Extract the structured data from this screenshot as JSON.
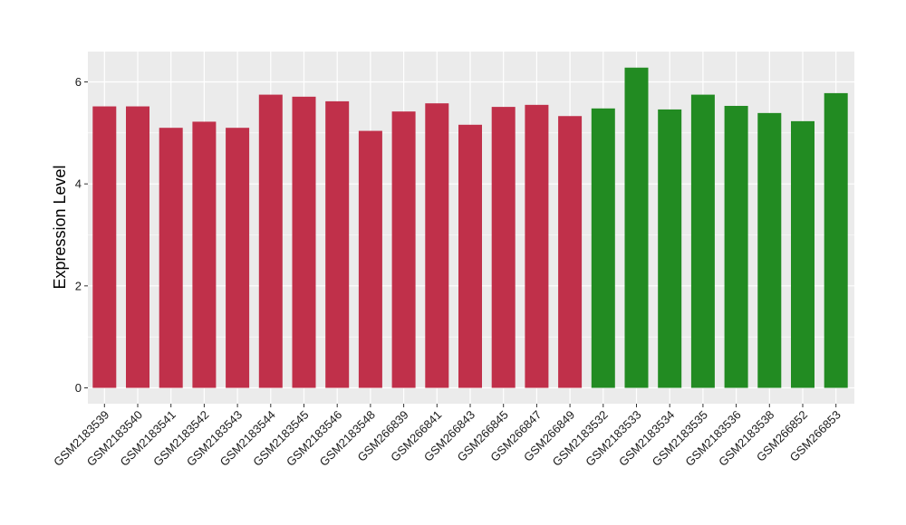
{
  "chart_data": {
    "type": "bar",
    "ylabel": "Expression Level",
    "xlabel": "",
    "ylim": [
      0,
      6.6
    ],
    "yticks": [
      0,
      2,
      4,
      6
    ],
    "grid": true,
    "legend": "none",
    "colors": {
      "group1": "#C0304A",
      "group2": "#228B22",
      "panel_bg": "#EBEBEB",
      "grid": "#FFFFFF"
    },
    "categories": [
      "GSM2183539",
      "GSM2183540",
      "GSM2183541",
      "GSM2183542",
      "GSM2183543",
      "GSM2183544",
      "GSM2183545",
      "GSM2183546",
      "GSM2183548",
      "GSM266839",
      "GSM266841",
      "GSM266843",
      "GSM266845",
      "GSM266847",
      "GSM266849",
      "GSM2183532",
      "GSM2183533",
      "GSM2183534",
      "GSM2183535",
      "GSM2183536",
      "GSM2183538",
      "GSM266852",
      "GSM266853"
    ],
    "values": [
      5.52,
      5.52,
      5.1,
      5.22,
      5.1,
      5.75,
      5.71,
      5.62,
      5.04,
      5.42,
      5.58,
      5.16,
      5.51,
      5.55,
      5.33,
      5.48,
      6.28,
      5.46,
      5.75,
      5.53,
      5.39,
      5.23,
      5.78
    ],
    "groups": [
      1,
      1,
      1,
      1,
      1,
      1,
      1,
      1,
      1,
      1,
      1,
      1,
      1,
      1,
      1,
      2,
      2,
      2,
      2,
      2,
      2,
      2,
      2
    ]
  }
}
